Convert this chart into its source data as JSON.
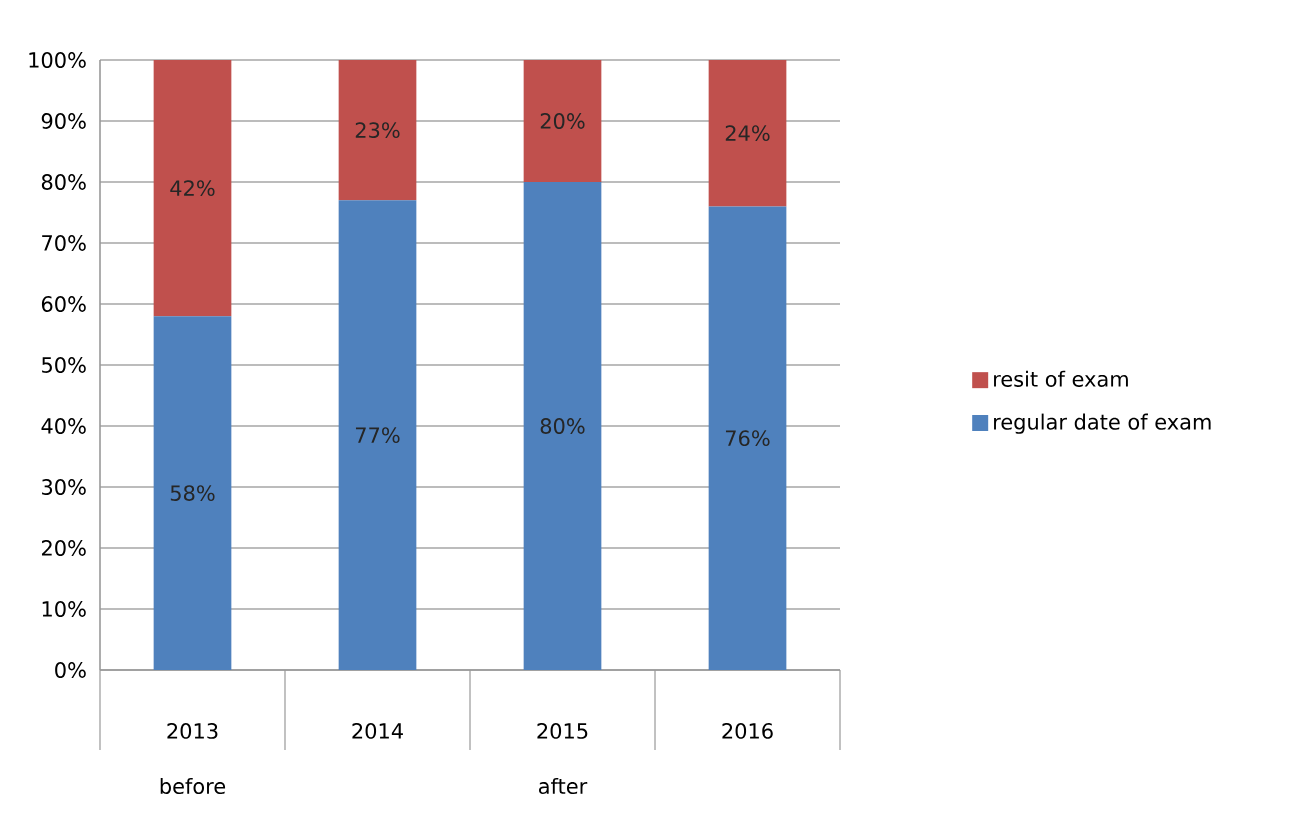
{
  "chart_data": {
    "type": "bar",
    "stacked": true,
    "categories": [
      "2013",
      "2014",
      "2015",
      "2016"
    ],
    "series": [
      {
        "name": "regular date of exam",
        "color": "#4f81bd",
        "values": [
          58,
          77,
          80,
          76
        ],
        "value_labels": [
          "58%",
          "77%",
          "80%",
          "76%"
        ]
      },
      {
        "name": "resit of exam",
        "color": "#c0504d",
        "values": [
          42,
          23,
          20,
          24
        ],
        "value_labels": [
          "42%",
          "23%",
          "20%",
          "24%"
        ]
      }
    ],
    "ylim": [
      0,
      100
    ],
    "yticks": [
      {
        "value": 0,
        "label": "0%"
      },
      {
        "value": 10,
        "label": "10%"
      },
      {
        "value": 20,
        "label": "20%"
      },
      {
        "value": 30,
        "label": "30%"
      },
      {
        "value": 40,
        "label": "40%"
      },
      {
        "value": 50,
        "label": "50%"
      },
      {
        "value": 60,
        "label": "60%"
      },
      {
        "value": 70,
        "label": "70%"
      },
      {
        "value": 80,
        "label": "80%"
      },
      {
        "value": 90,
        "label": "90%"
      },
      {
        "value": 100,
        "label": "100%"
      }
    ],
    "grid": "y",
    "legend": "right",
    "annotations": [
      "before",
      "after"
    ]
  }
}
